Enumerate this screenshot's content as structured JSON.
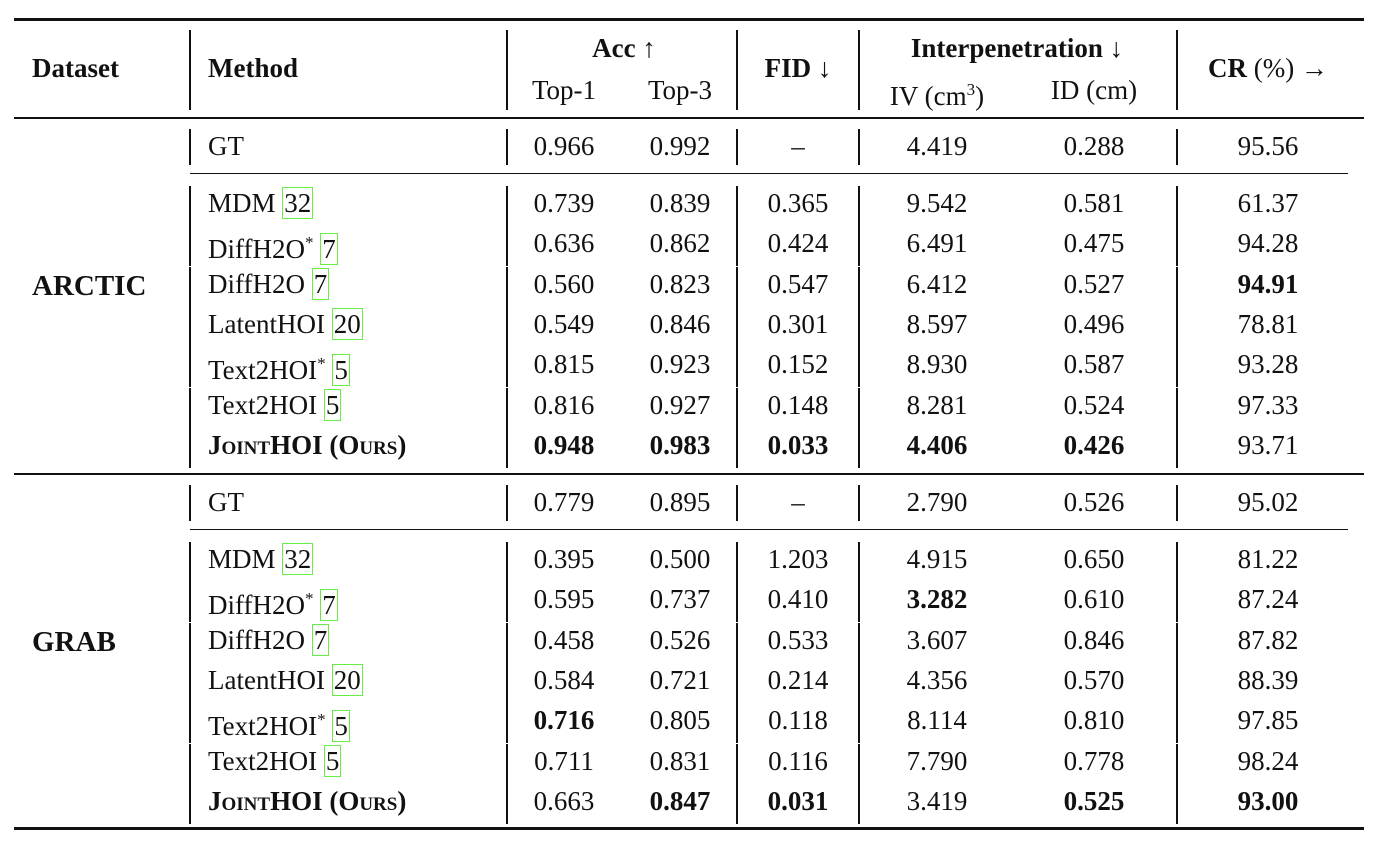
{
  "header": {
    "dataset": "Dataset",
    "method": "Method",
    "acc": "Acc ↑",
    "top1": "Top-1",
    "top3": "Top-3",
    "fid": "FID ↓",
    "interp": "Interpenetration ↓",
    "iv_pre": "IV (cm",
    "iv_sup": "3",
    "iv_post": ")",
    "id": "ID (cm)",
    "cr_bold": "CR",
    "cr_rest": " (%) →"
  },
  "datasets": [
    {
      "name": "ARCTIC",
      "rows": [
        {
          "method": "GT",
          "ref": "",
          "star": "",
          "top1": "0.966",
          "top3": "0.992",
          "fid": "–",
          "iv": "4.419",
          "id": "0.288",
          "cr": "95.56",
          "bold": []
        },
        {
          "method": "MDM ",
          "ref": "32",
          "star": "",
          "top1": "0.739",
          "top3": "0.839",
          "fid": "0.365",
          "iv": "9.542",
          "id": "0.581",
          "cr": "61.37",
          "bold": []
        },
        {
          "method": "DiffH2O",
          "ref": "7",
          "star": "*",
          "top1": "0.636",
          "top3": "0.862",
          "fid": "0.424",
          "iv": "6.491",
          "id": "0.475",
          "cr": "94.28",
          "bold": []
        },
        {
          "method": "DiffH2O ",
          "ref": "7",
          "star": "",
          "top1": "0.560",
          "top3": "0.823",
          "fid": "0.547",
          "iv": "6.412",
          "id": "0.527",
          "cr": "94.91",
          "bold": [
            "cr"
          ]
        },
        {
          "method": "LatentHOI ",
          "ref": "20",
          "star": "",
          "top1": "0.549",
          "top3": "0.846",
          "fid": "0.301",
          "iv": "8.597",
          "id": "0.496",
          "cr": "78.81",
          "bold": []
        },
        {
          "method": "Text2HOI",
          "ref": "5",
          "star": "*",
          "top1": "0.815",
          "top3": "0.923",
          "fid": "0.152",
          "iv": "8.930",
          "id": "0.587",
          "cr": "93.28",
          "bold": []
        },
        {
          "method": "Text2HOI ",
          "ref": "5",
          "star": "",
          "top1": "0.816",
          "top3": "0.927",
          "fid": "0.148",
          "iv": "8.281",
          "id": "0.524",
          "cr": "97.33",
          "bold": []
        },
        {
          "method": "JointHOI (Ours)",
          "ref": "",
          "star": "",
          "ours": true,
          "top1": "0.948",
          "top3": "0.983",
          "fid": "0.033",
          "iv": "4.406",
          "id": "0.426",
          "cr": "93.71",
          "bold": [
            "top1",
            "top3",
            "fid",
            "iv",
            "id"
          ]
        }
      ]
    },
    {
      "name": "GRAB",
      "rows": [
        {
          "method": "GT",
          "ref": "",
          "star": "",
          "top1": "0.779",
          "top3": "0.895",
          "fid": "–",
          "iv": "2.790",
          "id": "0.526",
          "cr": "95.02",
          "bold": []
        },
        {
          "method": "MDM ",
          "ref": "32",
          "star": "",
          "top1": "0.395",
          "top3": "0.500",
          "fid": "1.203",
          "iv": "4.915",
          "id": "0.650",
          "cr": "81.22",
          "bold": []
        },
        {
          "method": "DiffH2O",
          "ref": "7",
          "star": "*",
          "top1": "0.595",
          "top3": "0.737",
          "fid": "0.410",
          "iv": "3.282",
          "id": "0.610",
          "cr": "87.24",
          "bold": [
            "iv"
          ]
        },
        {
          "method": "DiffH2O ",
          "ref": "7",
          "star": "",
          "top1": "0.458",
          "top3": "0.526",
          "fid": "0.533",
          "iv": "3.607",
          "id": "0.846",
          "cr": "87.82",
          "bold": []
        },
        {
          "method": "LatentHOI ",
          "ref": "20",
          "star": "",
          "top1": "0.584",
          "top3": "0.721",
          "fid": "0.214",
          "iv": "4.356",
          "id": "0.570",
          "cr": "88.39",
          "bold": []
        },
        {
          "method": "Text2HOI",
          "ref": "5",
          "star": "*",
          "top1": "0.716",
          "top3": "0.805",
          "fid": "0.118",
          "iv": "8.114",
          "id": "0.810",
          "cr": "97.85",
          "bold": [
            "top1"
          ]
        },
        {
          "method": "Text2HOI ",
          "ref": "5",
          "star": "",
          "top1": "0.711",
          "top3": "0.831",
          "fid": "0.116",
          "iv": "7.790",
          "id": "0.778",
          "cr": "98.24",
          "bold": []
        },
        {
          "method": "JointHOI (Ours)",
          "ref": "",
          "star": "",
          "ours": true,
          "top1": "0.663",
          "top3": "0.847",
          "fid": "0.031",
          "iv": "3.419",
          "id": "0.525",
          "cr": "93.00",
          "bold": [
            "top3",
            "fid",
            "id",
            "cr"
          ]
        }
      ]
    }
  ]
}
